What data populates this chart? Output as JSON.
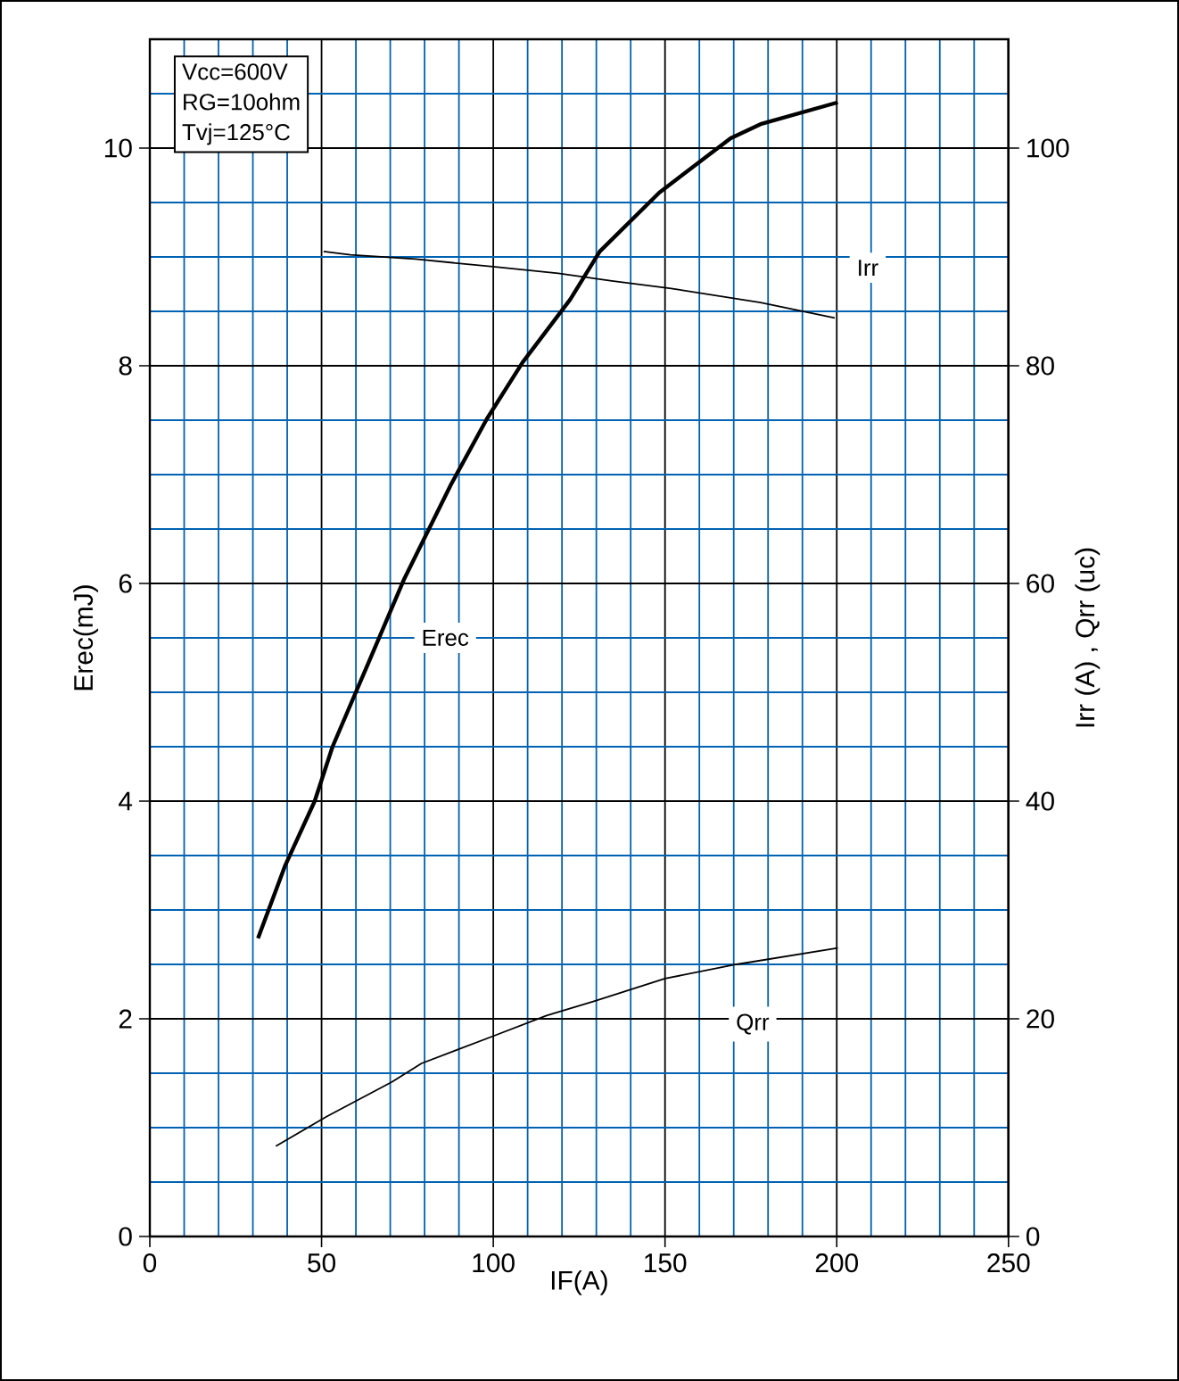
{
  "chart_data": {
    "type": "line",
    "xlabel": "IF(A)",
    "ylabel": "Erec(mJ)",
    "y2label": "Irr (A) , Qrr (uc)",
    "annotations": [
      "Vcc=600V",
      "RG=10ohm",
      "Tvj=125°C"
    ],
    "xlim": [
      0,
      250
    ],
    "xticks": [
      0,
      {
        "value": 10,
        "label": null
      },
      {
        "value": 20,
        "label": null
      },
      {
        "value": 30,
        "label": null
      },
      {
        "value": 40,
        "label": null
      },
      50,
      {
        "value": 60,
        "label": null
      },
      {
        "value": 70,
        "label": null
      },
      {
        "value": 80,
        "label": null
      },
      {
        "value": 90,
        "label": null
      },
      100,
      {
        "value": 110,
        "label": null
      },
      {
        "value": 120,
        "label": null
      },
      {
        "value": 130,
        "label": null
      },
      {
        "value": 140,
        "label": null
      },
      150,
      {
        "value": 160,
        "label": null
      },
      {
        "value": 170,
        "label": null
      },
      {
        "value": 180,
        "label": null
      },
      {
        "value": 190,
        "label": null
      },
      200,
      {
        "value": 210,
        "label": null
      },
      {
        "value": 220,
        "label": null
      },
      {
        "value": 230,
        "label": null
      },
      {
        "value": 240,
        "label": null
      },
      250
    ],
    "ylim": [
      0,
      11
    ],
    "yticks": [
      0,
      {
        "value": 0.5,
        "label": null
      },
      {
        "value": 1,
        "label": null
      },
      {
        "value": 1.5,
        "label": null
      },
      2,
      {
        "value": 2.5,
        "label": null
      },
      {
        "value": 3,
        "label": null
      },
      {
        "value": 3.5,
        "label": null
      },
      4,
      {
        "value": 4.5,
        "label": null
      },
      {
        "value": 5,
        "label": null
      },
      {
        "value": 5.5,
        "label": null
      },
      6,
      {
        "value": 6.5,
        "label": null
      },
      {
        "value": 7,
        "label": null
      },
      {
        "value": 7.5,
        "label": null
      },
      8,
      {
        "value": 8.5,
        "label": null
      },
      {
        "value": 9,
        "label": null
      },
      {
        "value": 9.5,
        "label": null
      },
      10,
      {
        "value": 10.5,
        "label": null
      }
    ],
    "y2lim": [
      0,
      110
    ],
    "y2ticks": [
      0,
      20,
      40,
      60,
      80,
      100
    ],
    "grid": true,
    "marker": "none",
    "line_style": "solid",
    "series": [
      {
        "name": "Erec",
        "color": "#000000",
        "x": [
          31.5,
          39.3,
          48,
          53.2,
          63.5,
          73.9,
          87.7,
          98.1,
          108.5,
          122.4,
          131,
          148.3,
          169.1,
          177.8,
          200.3
        ],
        "values": [
          2.74,
          3.4,
          4.0,
          4.5,
          5.26,
          6.03,
          6.91,
          7.51,
          8.03,
          8.61,
          9.05,
          9.59,
          10.09,
          10.22,
          10.42
        ]
      },
      {
        "name": "Irr",
        "color": "#000000",
        "axis": "y2",
        "x": [
          50.6,
          58.4,
          77.4,
          99.9,
          118.9,
          134.5,
          151.8,
          177.8,
          199.4
        ],
        "values": [
          90.5,
          90.2,
          89.8,
          89.1,
          88.5,
          87.8,
          87.1,
          85.8,
          84.4
        ]
      },
      {
        "name": "Qrr",
        "color": "#000000",
        "axis": "y2",
        "x": [
          36.7,
          51.4,
          70.5,
          79.1,
          99.9,
          115.5,
          129.3,
          150,
          170.8,
          200.3
        ],
        "values": [
          8.3,
          11.0,
          14.2,
          15.9,
          18.4,
          20.3,
          21.6,
          23.7,
          25.0,
          26.5
        ]
      }
    ]
  }
}
